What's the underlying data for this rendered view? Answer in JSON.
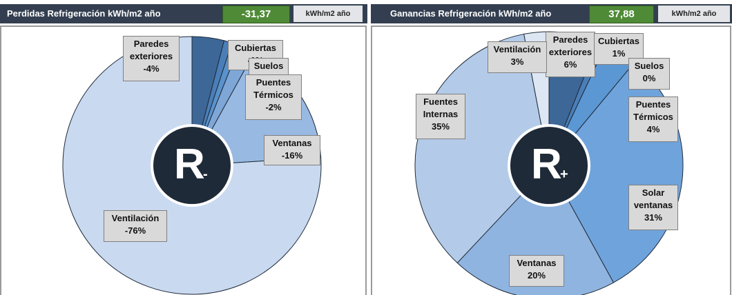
{
  "chart_data": [
    {
      "type": "pie",
      "title": "Perdidas Refrigeración kWh/m2 año",
      "total": "-31,37",
      "unit": "kWh/m2 año",
      "center_label": "R",
      "center_sign": "-",
      "categories": [
        "Paredes exteriores",
        "Cubiertas",
        "Suelos",
        "Puentes Térmicos",
        "Ventanas",
        "Ventilación"
      ],
      "values": [
        -4,
        -1,
        -1,
        -2,
        -16,
        -76
      ],
      "value_labels": [
        "-4%",
        "-1%",
        "-1%",
        "-2%",
        "-16%",
        "-76%"
      ],
      "colors": [
        "#3d6796",
        "#4a7eb8",
        "#5a92cc",
        "#7ea7d8",
        "#98b9e2",
        "#c9d9f0"
      ]
    },
    {
      "type": "pie",
      "title": "Ganancias Refrigeración kWh/m2 año",
      "total": "37,88",
      "unit": "kWh/m2 año",
      "center_label": "R",
      "center_sign": "+",
      "categories": [
        "Paredes exteriores",
        "Cubiertas",
        "Suelos",
        "Puentes Térmicos",
        "Solar ventanas",
        "Ventanas",
        "Fuentes Internas",
        "Ventilación"
      ],
      "values": [
        6,
        1,
        0,
        4,
        31,
        20,
        35,
        3
      ],
      "value_labels": [
        "6%",
        "1%",
        "0%",
        "4%",
        "31%",
        "20%",
        "35%",
        "3%"
      ],
      "colors": [
        "#3d6796",
        "#4a7eb8",
        "#5590c8",
        "#5b97d3",
        "#6fa3dc",
        "#8fb4e0",
        "#b3cbe8",
        "#dde6f3"
      ]
    }
  ]
}
